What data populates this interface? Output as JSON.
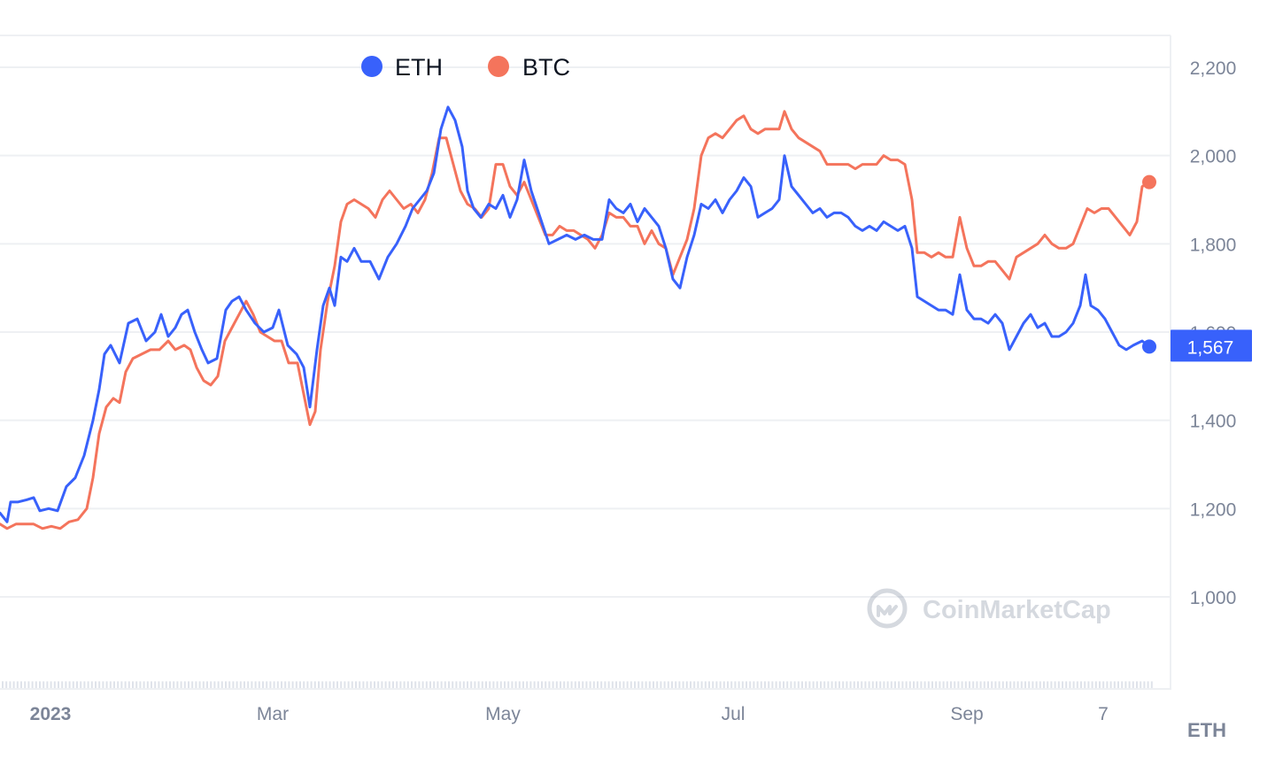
{
  "chart_data": {
    "type": "line",
    "x_ticks": [
      "2023",
      "Mar",
      "May",
      "Jul",
      "Sep",
      "7"
    ],
    "y_ticks": [
      "1,000",
      "1,200",
      "1,400",
      "1,600",
      "1,800",
      "2,000",
      "2,200"
    ],
    "y_tick_values": [
      1000,
      1200,
      1400,
      1600,
      1800,
      2000,
      2200
    ],
    "ylim": [
      800,
      2270
    ],
    "axis_unit": "ETH",
    "current_price_label": "1,567",
    "watermark": "CoinMarketCap",
    "legend_position": "top-center",
    "grid": true,
    "colors": {
      "ETH": "#3861fb",
      "BTC": "#f4745c",
      "price_tag": "#3861fb",
      "grid": "#eef0f3",
      "axis_text": "#7c8598"
    },
    "series": [
      {
        "name": "ETH",
        "color": "#3861fb",
        "points": [
          [
            0,
            1190
          ],
          [
            8,
            1170
          ],
          [
            12,
            1215
          ],
          [
            20,
            1215
          ],
          [
            30,
            1220
          ],
          [
            38,
            1225
          ],
          [
            45,
            1195
          ],
          [
            55,
            1200
          ],
          [
            65,
            1195
          ],
          [
            75,
            1250
          ],
          [
            85,
            1270
          ],
          [
            95,
            1320
          ],
          [
            105,
            1400
          ],
          [
            112,
            1470
          ],
          [
            118,
            1550
          ],
          [
            125,
            1570
          ],
          [
            135,
            1530
          ],
          [
            145,
            1620
          ],
          [
            155,
            1630
          ],
          [
            165,
            1580
          ],
          [
            175,
            1600
          ],
          [
            182,
            1640
          ],
          [
            190,
            1590
          ],
          [
            198,
            1610
          ],
          [
            205,
            1640
          ],
          [
            212,
            1650
          ],
          [
            220,
            1600
          ],
          [
            228,
            1560
          ],
          [
            235,
            1530
          ],
          [
            245,
            1540
          ],
          [
            255,
            1650
          ],
          [
            262,
            1670
          ],
          [
            270,
            1680
          ],
          [
            278,
            1650
          ],
          [
            288,
            1620
          ],
          [
            298,
            1600
          ],
          [
            308,
            1610
          ],
          [
            315,
            1650
          ],
          [
            325,
            1570
          ],
          [
            335,
            1550
          ],
          [
            343,
            1520
          ],
          [
            350,
            1430
          ],
          [
            358,
            1560
          ],
          [
            365,
            1660
          ],
          [
            372,
            1700
          ],
          [
            378,
            1660
          ],
          [
            385,
            1770
          ],
          [
            392,
            1760
          ],
          [
            400,
            1790
          ],
          [
            408,
            1760
          ],
          [
            418,
            1760
          ],
          [
            428,
            1720
          ],
          [
            438,
            1770
          ],
          [
            448,
            1800
          ],
          [
            458,
            1840
          ],
          [
            466,
            1880
          ],
          [
            474,
            1900
          ],
          [
            482,
            1920
          ],
          [
            490,
            1960
          ],
          [
            498,
            2060
          ],
          [
            506,
            2110
          ],
          [
            514,
            2080
          ],
          [
            522,
            2020
          ],
          [
            528,
            1920
          ],
          [
            535,
            1880
          ],
          [
            543,
            1860
          ],
          [
            552,
            1890
          ],
          [
            560,
            1880
          ],
          [
            568,
            1910
          ],
          [
            576,
            1860
          ],
          [
            584,
            1900
          ],
          [
            592,
            1990
          ],
          [
            600,
            1920
          ],
          [
            610,
            1860
          ],
          [
            620,
            1800
          ],
          [
            630,
            1810
          ],
          [
            640,
            1820
          ],
          [
            650,
            1810
          ],
          [
            660,
            1820
          ],
          [
            670,
            1810
          ],
          [
            680,
            1810
          ],
          [
            688,
            1900
          ],
          [
            696,
            1880
          ],
          [
            704,
            1870
          ],
          [
            712,
            1890
          ],
          [
            720,
            1850
          ],
          [
            728,
            1880
          ],
          [
            736,
            1860
          ],
          [
            744,
            1840
          ],
          [
            752,
            1790
          ],
          [
            760,
            1720
          ],
          [
            768,
            1700
          ],
          [
            776,
            1770
          ],
          [
            784,
            1820
          ],
          [
            792,
            1890
          ],
          [
            800,
            1880
          ],
          [
            808,
            1900
          ],
          [
            816,
            1870
          ],
          [
            824,
            1900
          ],
          [
            832,
            1920
          ],
          [
            840,
            1950
          ],
          [
            848,
            1930
          ],
          [
            856,
            1860
          ],
          [
            864,
            1870
          ],
          [
            872,
            1880
          ],
          [
            880,
            1900
          ],
          [
            886,
            2000
          ],
          [
            894,
            1930
          ],
          [
            902,
            1910
          ],
          [
            910,
            1890
          ],
          [
            918,
            1870
          ],
          [
            926,
            1880
          ],
          [
            934,
            1860
          ],
          [
            942,
            1870
          ],
          [
            950,
            1870
          ],
          [
            958,
            1860
          ],
          [
            966,
            1840
          ],
          [
            974,
            1830
          ],
          [
            982,
            1840
          ],
          [
            990,
            1830
          ],
          [
            998,
            1850
          ],
          [
            1006,
            1840
          ],
          [
            1014,
            1830
          ],
          [
            1022,
            1840
          ],
          [
            1030,
            1790
          ],
          [
            1036,
            1680
          ],
          [
            1044,
            1670
          ],
          [
            1052,
            1660
          ],
          [
            1060,
            1650
          ],
          [
            1068,
            1650
          ],
          [
            1076,
            1640
          ],
          [
            1084,
            1730
          ],
          [
            1092,
            1650
          ],
          [
            1100,
            1630
          ],
          [
            1108,
            1630
          ],
          [
            1116,
            1620
          ],
          [
            1124,
            1640
          ],
          [
            1132,
            1620
          ],
          [
            1140,
            1560
          ],
          [
            1148,
            1590
          ],
          [
            1156,
            1620
          ],
          [
            1164,
            1640
          ],
          [
            1172,
            1610
          ],
          [
            1180,
            1620
          ],
          [
            1188,
            1590
          ],
          [
            1196,
            1590
          ],
          [
            1204,
            1600
          ],
          [
            1212,
            1620
          ],
          [
            1220,
            1660
          ],
          [
            1226,
            1730
          ],
          [
            1232,
            1660
          ],
          [
            1240,
            1650
          ],
          [
            1248,
            1630
          ],
          [
            1256,
            1600
          ],
          [
            1264,
            1570
          ],
          [
            1272,
            1560
          ],
          [
            1280,
            1570
          ],
          [
            1290,
            1580
          ],
          [
            1298,
            1567
          ]
        ]
      },
      {
        "name": "BTC",
        "color": "#f4745c",
        "points": [
          [
            0,
            1165
          ],
          [
            8,
            1155
          ],
          [
            18,
            1165
          ],
          [
            28,
            1165
          ],
          [
            38,
            1165
          ],
          [
            48,
            1155
          ],
          [
            58,
            1160
          ],
          [
            68,
            1155
          ],
          [
            78,
            1170
          ],
          [
            88,
            1175
          ],
          [
            98,
            1200
          ],
          [
            105,
            1270
          ],
          [
            112,
            1370
          ],
          [
            120,
            1430
          ],
          [
            128,
            1450
          ],
          [
            135,
            1440
          ],
          [
            142,
            1510
          ],
          [
            150,
            1540
          ],
          [
            160,
            1550
          ],
          [
            170,
            1560
          ],
          [
            180,
            1560
          ],
          [
            190,
            1580
          ],
          [
            198,
            1560
          ],
          [
            208,
            1570
          ],
          [
            215,
            1560
          ],
          [
            222,
            1520
          ],
          [
            230,
            1490
          ],
          [
            238,
            1480
          ],
          [
            246,
            1500
          ],
          [
            254,
            1580
          ],
          [
            262,
            1610
          ],
          [
            270,
            1640
          ],
          [
            278,
            1670
          ],
          [
            286,
            1640
          ],
          [
            294,
            1600
          ],
          [
            302,
            1590
          ],
          [
            310,
            1580
          ],
          [
            318,
            1580
          ],
          [
            326,
            1530
          ],
          [
            336,
            1530
          ],
          [
            344,
            1450
          ],
          [
            350,
            1390
          ],
          [
            356,
            1420
          ],
          [
            362,
            1560
          ],
          [
            370,
            1670
          ],
          [
            378,
            1750
          ],
          [
            385,
            1850
          ],
          [
            392,
            1890
          ],
          [
            400,
            1900
          ],
          [
            408,
            1890
          ],
          [
            416,
            1880
          ],
          [
            424,
            1860
          ],
          [
            432,
            1900
          ],
          [
            440,
            1920
          ],
          [
            448,
            1900
          ],
          [
            456,
            1880
          ],
          [
            464,
            1890
          ],
          [
            472,
            1870
          ],
          [
            480,
            1900
          ],
          [
            488,
            1960
          ],
          [
            496,
            2040
          ],
          [
            504,
            2040
          ],
          [
            512,
            1980
          ],
          [
            520,
            1920
          ],
          [
            528,
            1890
          ],
          [
            536,
            1880
          ],
          [
            544,
            1860
          ],
          [
            552,
            1880
          ],
          [
            560,
            1980
          ],
          [
            568,
            1980
          ],
          [
            576,
            1930
          ],
          [
            584,
            1910
          ],
          [
            592,
            1940
          ],
          [
            600,
            1900
          ],
          [
            608,
            1860
          ],
          [
            616,
            1820
          ],
          [
            624,
            1820
          ],
          [
            632,
            1840
          ],
          [
            640,
            1830
          ],
          [
            648,
            1830
          ],
          [
            656,
            1820
          ],
          [
            664,
            1810
          ],
          [
            672,
            1790
          ],
          [
            680,
            1820
          ],
          [
            688,
            1870
          ],
          [
            696,
            1860
          ],
          [
            704,
            1860
          ],
          [
            712,
            1840
          ],
          [
            720,
            1840
          ],
          [
            728,
            1800
          ],
          [
            736,
            1830
          ],
          [
            744,
            1800
          ],
          [
            752,
            1790
          ],
          [
            760,
            1730
          ],
          [
            768,
            1770
          ],
          [
            776,
            1810
          ],
          [
            784,
            1880
          ],
          [
            792,
            2000
          ],
          [
            800,
            2040
          ],
          [
            808,
            2050
          ],
          [
            816,
            2040
          ],
          [
            824,
            2060
          ],
          [
            832,
            2080
          ],
          [
            840,
            2090
          ],
          [
            848,
            2060
          ],
          [
            856,
            2050
          ],
          [
            864,
            2060
          ],
          [
            872,
            2060
          ],
          [
            880,
            2060
          ],
          [
            886,
            2100
          ],
          [
            894,
            2060
          ],
          [
            902,
            2040
          ],
          [
            910,
            2030
          ],
          [
            918,
            2020
          ],
          [
            926,
            2010
          ],
          [
            934,
            1980
          ],
          [
            942,
            1980
          ],
          [
            950,
            1980
          ],
          [
            958,
            1980
          ],
          [
            966,
            1970
          ],
          [
            974,
            1980
          ],
          [
            982,
            1980
          ],
          [
            990,
            1980
          ],
          [
            998,
            2000
          ],
          [
            1006,
            1990
          ],
          [
            1014,
            1990
          ],
          [
            1022,
            1980
          ],
          [
            1030,
            1900
          ],
          [
            1036,
            1780
          ],
          [
            1044,
            1780
          ],
          [
            1052,
            1770
          ],
          [
            1060,
            1780
          ],
          [
            1068,
            1770
          ],
          [
            1076,
            1770
          ],
          [
            1084,
            1860
          ],
          [
            1092,
            1790
          ],
          [
            1100,
            1750
          ],
          [
            1108,
            1750
          ],
          [
            1116,
            1760
          ],
          [
            1124,
            1760
          ],
          [
            1132,
            1740
          ],
          [
            1140,
            1720
          ],
          [
            1148,
            1770
          ],
          [
            1156,
            1780
          ],
          [
            1164,
            1790
          ],
          [
            1172,
            1800
          ],
          [
            1180,
            1820
          ],
          [
            1188,
            1800
          ],
          [
            1196,
            1790
          ],
          [
            1204,
            1790
          ],
          [
            1212,
            1800
          ],
          [
            1220,
            1840
          ],
          [
            1228,
            1880
          ],
          [
            1236,
            1870
          ],
          [
            1244,
            1880
          ],
          [
            1252,
            1880
          ],
          [
            1260,
            1860
          ],
          [
            1268,
            1840
          ],
          [
            1276,
            1820
          ],
          [
            1284,
            1850
          ],
          [
            1290,
            1930
          ],
          [
            1298,
            1940
          ]
        ]
      }
    ],
    "volume_seed": 0.37
  }
}
